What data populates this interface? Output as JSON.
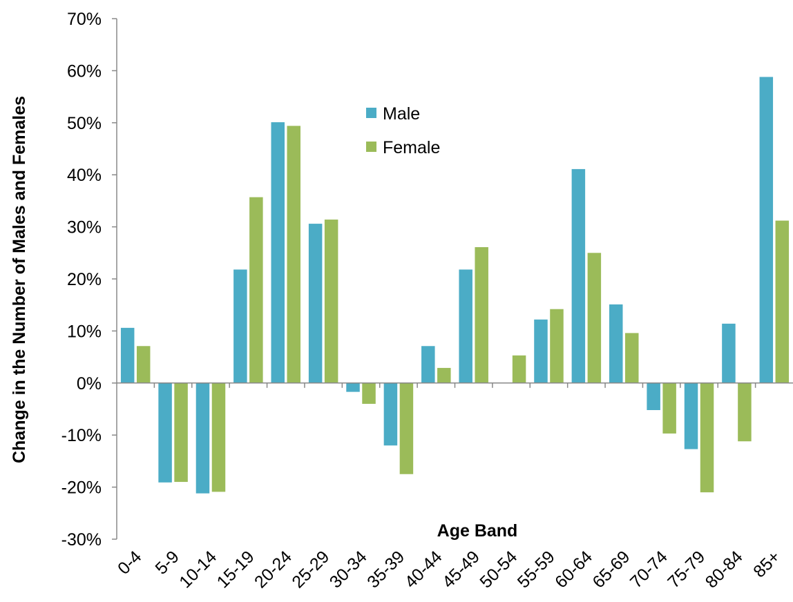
{
  "chart_data": {
    "type": "bar",
    "title": "",
    "xlabel": "Age Band",
    "ylabel": "Change in the Number of Males and Females",
    "ylim": [
      -0.3,
      0.7
    ],
    "yticks": [
      -0.3,
      -0.2,
      -0.1,
      0,
      0.1,
      0.2,
      0.3,
      0.4,
      0.5,
      0.6,
      0.7
    ],
    "ytick_labels": [
      "-30%",
      "-20%",
      "-10%",
      "0%",
      "10%",
      "20%",
      "30%",
      "40%",
      "50%",
      "60%",
      "70%"
    ],
    "categories": [
      "0-4",
      "5-9",
      "10-14",
      "15-19",
      "20-24",
      "25-29",
      "30-34",
      "35-39",
      "40-44",
      "45-49",
      "50-54",
      "55-59",
      "60-64",
      "65-69",
      "70-74",
      "75-79",
      "80-84",
      "85+"
    ],
    "series": [
      {
        "name": "Male",
        "color": "#4BACC6",
        "values": [
          0.106,
          -0.191,
          -0.212,
          0.218,
          0.501,
          0.306,
          -0.017,
          -0.12,
          0.071,
          0.218,
          0.0,
          0.122,
          0.411,
          0.151,
          -0.052,
          -0.127,
          0.114,
          0.588
        ]
      },
      {
        "name": "Female",
        "color": "#9BBB59",
        "values": [
          0.071,
          -0.19,
          -0.209,
          0.357,
          0.494,
          0.314,
          -0.04,
          -0.175,
          0.029,
          0.261,
          0.053,
          0.142,
          0.25,
          0.096,
          -0.097,
          -0.21,
          -0.112,
          0.312
        ]
      }
    ],
    "legend_position": "upper-center",
    "grid": false
  }
}
